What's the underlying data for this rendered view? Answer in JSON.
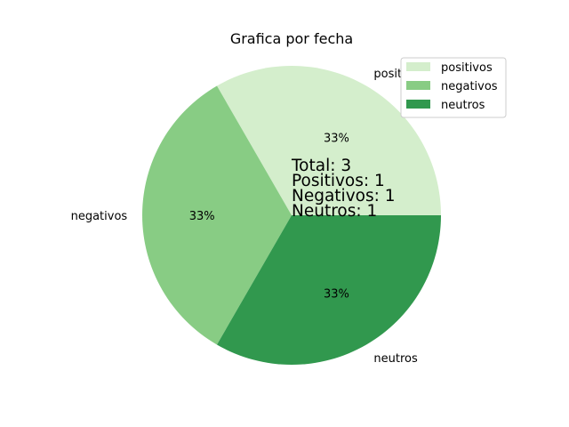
{
  "chart_data": {
    "type": "pie",
    "title": "Grafica por fecha",
    "slices": [
      {
        "label": "positivos",
        "value": 1,
        "pct_label": "33%",
        "color": "#d4eecc"
      },
      {
        "label": "negativos",
        "value": 1,
        "pct_label": "33%",
        "color": "#88cc84"
      },
      {
        "label": "neutros",
        "value": 1,
        "pct_label": "33%",
        "color": "#31984e"
      }
    ],
    "legend": {
      "placement": "upper right",
      "entries": [
        "positivos",
        "negativos",
        "neutros"
      ]
    },
    "annotation_lines": [
      "Total: 3",
      "Positivos: 1",
      "Negativos: 1",
      "Neutros: 1"
    ]
  }
}
